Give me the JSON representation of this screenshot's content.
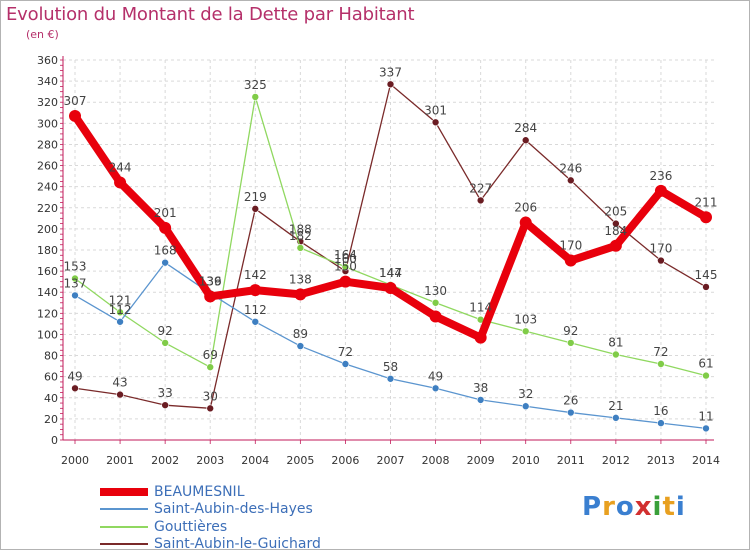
{
  "title": "Evolution du Montant de la Dette par Habitant",
  "unit": "(en €)",
  "logo": {
    "text": "Proxiti",
    "colors": [
      "#3a7fd0",
      "#e8a020",
      "#3a7fd0",
      "#d23030",
      "#3aa03a",
      "#e8a020",
      "#3a7fd0"
    ]
  },
  "chart_data": {
    "type": "line",
    "x": [
      "2000",
      "2001",
      "2002",
      "2003",
      "2004",
      "2005",
      "2006",
      "2007",
      "2008",
      "2009",
      "2010",
      "2011",
      "2012",
      "2013",
      "2014"
    ],
    "ylim": [
      0,
      360
    ],
    "yticks": [
      0,
      20,
      40,
      60,
      80,
      100,
      120,
      140,
      160,
      180,
      200,
      220,
      240,
      260,
      280,
      300,
      320,
      340,
      360
    ],
    "grid": true,
    "legend_position": "bottom-left",
    "series": [
      {
        "name": "BEAUMESNIL",
        "color": "#e8000c",
        "marker": "#e8000c",
        "width": 8,
        "markerRadius": 6,
        "values": [
          307,
          244,
          201,
          136,
          142,
          138,
          150,
          144,
          117,
          97,
          206,
          170,
          184,
          236,
          211
        ],
        "labels": [
          "307",
          "244",
          "201",
          "136",
          "142",
          "138",
          "150",
          "144",
          "",
          "",
          "206",
          "170",
          "184",
          "236",
          "211"
        ]
      },
      {
        "name": "Saint-Aubin-des-Hayes",
        "color": "#5b95cf",
        "marker": "#3e7fc1",
        "width": 1.3,
        "markerRadius": 3.5,
        "values": [
          137,
          112,
          168,
          139,
          112,
          89,
          72,
          58,
          49,
          38,
          32,
          26,
          21,
          16,
          11
        ],
        "labels": [
          "137",
          "112",
          "168",
          "139",
          "112",
          "89",
          "72",
          "58",
          "49",
          "38",
          "32",
          "26",
          "21",
          "16",
          "11"
        ]
      },
      {
        "name": "Gouttières",
        "color": "#90d860",
        "marker": "#80cc48",
        "width": 1.3,
        "markerRadius": 3.5,
        "values": [
          153,
          121,
          92,
          69,
          325,
          182,
          164,
          147,
          130,
          114,
          103,
          92,
          81,
          72,
          61
        ],
        "labels": [
          "153",
          "121",
          "92",
          "69",
          "325",
          "182",
          "164",
          "147",
          "130",
          "114",
          "103",
          "92",
          "81",
          "72",
          "61"
        ]
      },
      {
        "name": "Saint-Aubin-le-Guichard",
        "color": "#7a2a2a",
        "marker": "#6a1c22",
        "width": 1.3,
        "markerRadius": 3.5,
        "values": [
          49,
          43,
          33,
          30,
          219,
          188,
          160,
          337,
          301,
          227,
          284,
          246,
          205,
          170,
          145
        ],
        "labels": [
          "49",
          "43",
          "33",
          "30",
          "219",
          "188",
          "160",
          "337",
          "301",
          "227",
          "284",
          "246",
          "205",
          "170",
          "145"
        ]
      }
    ]
  }
}
